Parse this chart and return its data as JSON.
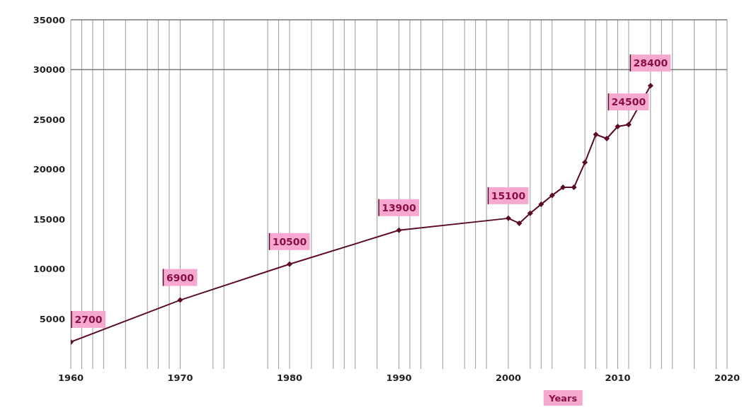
{
  "chart_data": {
    "type": "line",
    "xlabel": "Years",
    "x": [
      1960,
      1970,
      1980,
      1990,
      2000,
      2001,
      2002,
      2003,
      2004,
      2005,
      2006,
      2007,
      2008,
      2009,
      2010,
      2011,
      2013
    ],
    "series": [
      {
        "color": "#5a0a2a",
        "values": [
          2700,
          6900,
          10500,
          13900,
          15100,
          14600,
          15600,
          16500,
          17400,
          18200,
          18200,
          20700,
          23500,
          23100,
          24300,
          24500,
          28400
        ],
        "value_labels": [
          "2700",
          "6900",
          "10500",
          "13900",
          "15100",
          null,
          null,
          null,
          null,
          null,
          null,
          null,
          null,
          null,
          null,
          "24500",
          "28400"
        ]
      }
    ],
    "xlim": [
      1960,
      2020
    ],
    "xticks": [
      1960,
      {
        "value": 1961,
        "label": null
      },
      {
        "value": 1962,
        "label": null
      },
      {
        "value": 1963,
        "label": null
      },
      {
        "value": 1965,
        "label": null
      },
      {
        "value": 1967,
        "label": null
      },
      {
        "value": 1968,
        "label": null
      },
      {
        "value": 1969,
        "label": null
      },
      1970,
      {
        "value": 1973,
        "label": null
      },
      {
        "value": 1974,
        "label": null
      },
      {
        "value": 1978,
        "label": null
      },
      {
        "value": 1979,
        "label": null
      },
      1980,
      {
        "value": 1982,
        "label": null
      },
      {
        "value": 1984,
        "label": null
      },
      {
        "value": 1985,
        "label": null
      },
      {
        "value": 1986,
        "label": null
      },
      {
        "value": 1988,
        "label": null
      },
      1990,
      {
        "value": 1991,
        "label": null
      },
      {
        "value": 1992,
        "label": null
      },
      {
        "value": 1994,
        "label": null
      },
      {
        "value": 1996,
        "label": null
      },
      {
        "value": 1997,
        "label": null
      },
      {
        "value": 1998,
        "label": null
      },
      2000,
      {
        "value": 2002,
        "label": null
      },
      {
        "value": 2003,
        "label": null
      },
      {
        "value": 2004,
        "label": null
      },
      {
        "value": 2007,
        "label": null
      },
      {
        "value": 2008,
        "label": null
      },
      {
        "value": 2009,
        "label": null
      },
      2010,
      {
        "value": 2011,
        "label": null
      },
      {
        "value": 2013,
        "label": null
      },
      {
        "value": 2014,
        "label": null
      },
      {
        "value": 2015,
        "label": null
      },
      {
        "value": 2017,
        "label": null
      },
      {
        "value": 2019,
        "label": null
      },
      2020
    ],
    "ylim": [
      0,
      35000
    ],
    "yticks": [
      5000,
      10000,
      15000,
      20000,
      25000,
      30000,
      35000
    ],
    "grid": "x",
    "marker": "diamond",
    "line_style": "solid",
    "ref_lines": [
      {
        "axis": "y",
        "value": 30000,
        "color": "#777777"
      },
      {
        "axis": "y",
        "value": 35000,
        "color": "#777777"
      }
    ]
  }
}
